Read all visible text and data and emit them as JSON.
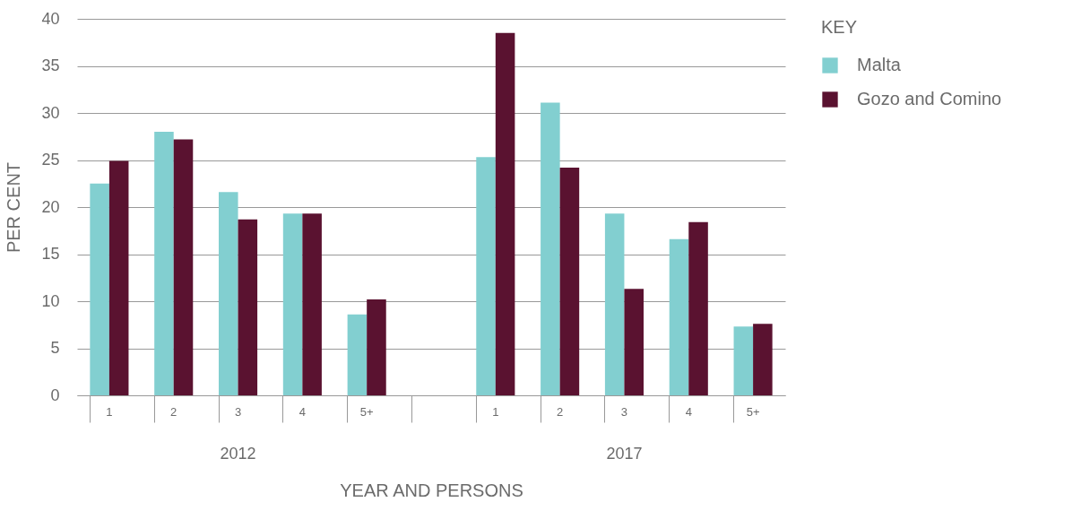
{
  "chart_data": {
    "type": "bar",
    "xlabel": "YEAR AND PERSONS",
    "ylabel": "PER CENT",
    "legend_title": "KEY",
    "legend": "right",
    "grid": "y",
    "categories": [
      "1",
      "2",
      "3",
      "4",
      "5+",
      null,
      "1",
      "2",
      "3",
      "4",
      "5+"
    ],
    "annotations": [
      "2012",
      "2017"
    ],
    "ylim": [
      0,
      40
    ],
    "yticks": [
      0,
      5,
      10,
      15,
      20,
      25,
      30,
      35,
      40
    ],
    "series": [
      {
        "name": "Malta",
        "color": "#82cfd0",
        "values": [
          22.5,
          28.0,
          21.6,
          19.3,
          8.6,
          null,
          25.3,
          31.1,
          19.3,
          16.6,
          7.3
        ]
      },
      {
        "name": "Gozo and Comino",
        "color": "#5a1230",
        "values": [
          24.9,
          27.2,
          18.7,
          19.3,
          10.2,
          null,
          38.5,
          24.2,
          11.3,
          18.4,
          7.6
        ]
      }
    ]
  }
}
